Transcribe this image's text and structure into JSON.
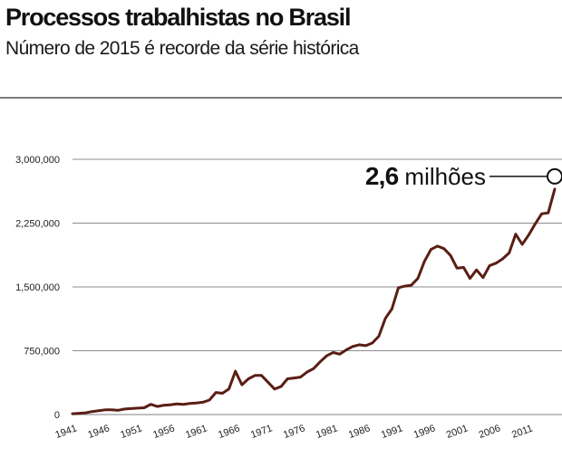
{
  "title": "Processos trabalhistas no Brasil",
  "subtitle": "Número de 2015 é recorde da série histórica",
  "colors": {
    "line": "#5a1e14",
    "grid": "#8c8c8c",
    "text": "#1a1a1a"
  },
  "chart_data": {
    "type": "line",
    "title": "Processos trabalhistas no Brasil",
    "subtitle": "Número de 2015 é recorde da série histórica",
    "xlabel": "",
    "ylabel": "",
    "xlim": [
      1941,
      2015
    ],
    "ylim": [
      0,
      3000000
    ],
    "grid": true,
    "y_ticks": [
      {
        "value": 0,
        "label": "0"
      },
      {
        "value": 750000,
        "label": "750,000"
      },
      {
        "value": 1500000,
        "label": "1,500,000"
      },
      {
        "value": 2250000,
        "label": "2,250,000"
      },
      {
        "value": 3000000,
        "label": "3,000,000"
      }
    ],
    "x_ticks": [
      "1941",
      "1946",
      "1951",
      "1956",
      "1961",
      "1966",
      "1971",
      "1976",
      "1981",
      "1986",
      "1991",
      "1996",
      "2001",
      "2006",
      "2011"
    ],
    "x": [
      1941,
      1942,
      1943,
      1944,
      1945,
      1946,
      1947,
      1948,
      1949,
      1950,
      1951,
      1952,
      1953,
      1954,
      1955,
      1956,
      1957,
      1958,
      1959,
      1960,
      1961,
      1962,
      1963,
      1964,
      1965,
      1966,
      1967,
      1968,
      1969,
      1970,
      1971,
      1972,
      1973,
      1974,
      1975,
      1976,
      1977,
      1978,
      1979,
      1980,
      1981,
      1982,
      1983,
      1984,
      1985,
      1986,
      1987,
      1988,
      1989,
      1990,
      1991,
      1992,
      1993,
      1994,
      1995,
      1996,
      1997,
      1998,
      1999,
      2000,
      2001,
      2002,
      2003,
      2004,
      2005,
      2006,
      2007,
      2008,
      2009,
      2010,
      2011,
      2012,
      2013,
      2014,
      2015
    ],
    "series": [
      {
        "values": [
          10000,
          15000,
          20000,
          35000,
          45000,
          55000,
          55000,
          50000,
          65000,
          70000,
          75000,
          80000,
          120000,
          95000,
          110000,
          115000,
          125000,
          120000,
          130000,
          135000,
          145000,
          170000,
          260000,
          250000,
          300000,
          510000,
          350000,
          420000,
          460000,
          460000,
          380000,
          300000,
          330000,
          420000,
          430000,
          440000,
          500000,
          540000,
          620000,
          690000,
          730000,
          710000,
          760000,
          800000,
          820000,
          810000,
          840000,
          920000,
          1130000,
          1240000,
          1490000,
          1510000,
          1520000,
          1600000,
          1800000,
          1940000,
          1980000,
          1950000,
          1870000,
          1720000,
          1730000,
          1600000,
          1700000,
          1610000,
          1750000,
          1780000,
          1830000,
          1900000,
          2120000,
          2000000,
          2110000,
          2240000,
          2360000,
          2370000,
          2650000
        ]
      }
    ],
    "annotations": [
      {
        "x": 2015,
        "y": 2650000,
        "value": "2,6",
        "unit": "milhões"
      }
    ]
  }
}
